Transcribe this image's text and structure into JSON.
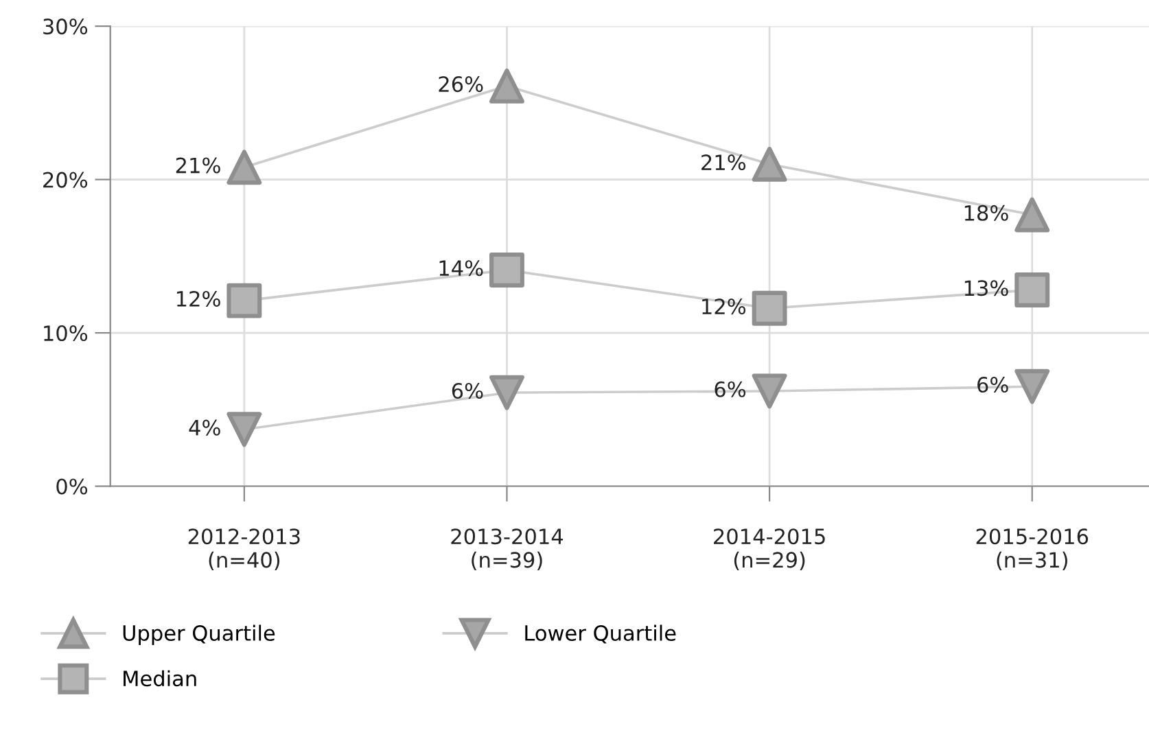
{
  "chart_data": {
    "type": "line",
    "categories": [
      "2012-2013\n(n=40)",
      "2013-2014\n(n=39)",
      "2014-2015\n(n=29)",
      "2015-2016\n(n=31)"
    ],
    "series": [
      {
        "name": "Upper Quartile",
        "color": "#a6a6a6",
        "marker": "triangle",
        "values": [
          20.8,
          26.1,
          21.0,
          17.7
        ],
        "value_labels": [
          "21%",
          "26%",
          "21%",
          "18%"
        ]
      },
      {
        "name": "Median",
        "color": "#b4b4b4",
        "marker": "square",
        "values": [
          12.1,
          14.1,
          11.6,
          12.8
        ],
        "value_labels": [
          "12%",
          "14%",
          "12%",
          "13%"
        ]
      },
      {
        "name": "Lower Quartile",
        "color": "#a6a6a6",
        "marker": "triangle_down",
        "values": [
          3.7,
          6.1,
          6.2,
          6.5
        ],
        "value_labels": [
          "4%",
          "6%",
          "6%",
          "6%"
        ]
      }
    ],
    "ylim": [
      0,
      30
    ],
    "yticks": [
      {
        "value": 0,
        "label": "0%"
      },
      {
        "value": 10,
        "label": "10%"
      },
      {
        "value": 20,
        "label": "20%"
      },
      {
        "value": 30,
        "label": "30%"
      }
    ],
    "grid": true,
    "legend": "bottom left"
  }
}
